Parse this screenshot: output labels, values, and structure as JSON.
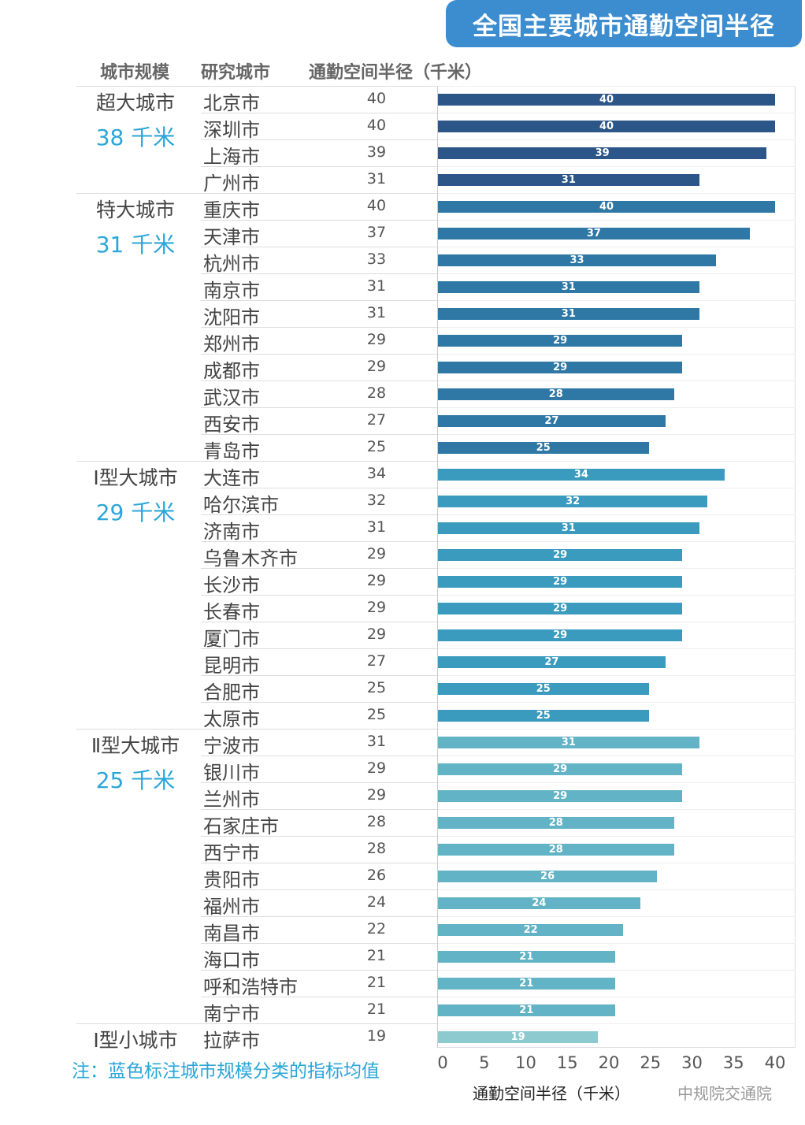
{
  "title": "全国主要城市通勤空间半径",
  "headers": {
    "scale": "城市规模",
    "city": "研究城市",
    "value": "通勤空间半径（千米）"
  },
  "note": "注：蓝色标注城市规模分类的指标均值",
  "watermark": "中规院交通院",
  "chart_data": {
    "type": "bar",
    "orientation": "horizontal",
    "xlabel": "通勤空间半径（千米）",
    "xlim": [
      0,
      40
    ],
    "xticks": [
      "0",
      "5",
      "10",
      "15",
      "20",
      "25",
      "30",
      "35",
      "40"
    ],
    "groups": [
      {
        "name": "超大城市",
        "avg": "38 千米",
        "color": "#2b5687",
        "cities": [
          "北京市",
          "深圳市",
          "上海市",
          "广州市"
        ],
        "values": [
          40,
          40,
          39,
          31
        ]
      },
      {
        "name": "特大城市",
        "avg": "31 千米",
        "color": "#2f78a5",
        "cities": [
          "重庆市",
          "天津市",
          "杭州市",
          "南京市",
          "沈阳市",
          "郑州市",
          "成都市",
          "武汉市",
          "西安市",
          "青岛市"
        ],
        "values": [
          40,
          37,
          33,
          31,
          31,
          29,
          29,
          28,
          27,
          25
        ]
      },
      {
        "name": "Ⅰ型大城市",
        "avg": "29 千米",
        "color": "#3a9bbf",
        "cities": [
          "大连市",
          "哈尔滨市",
          "济南市",
          "乌鲁木齐市",
          "长沙市",
          "长春市",
          "厦门市",
          "昆明市",
          "合肥市",
          "太原市"
        ],
        "values": [
          34,
          32,
          31,
          29,
          29,
          29,
          29,
          27,
          25,
          25
        ]
      },
      {
        "name": "Ⅱ型大城市",
        "avg": "25 千米",
        "color": "#62b3c5",
        "cities": [
          "宁波市",
          "银川市",
          "兰州市",
          "石家庄市",
          "西宁市",
          "贵阳市",
          "福州市",
          "南昌市",
          "海口市",
          "呼和浩特市",
          "南宁市"
        ],
        "values": [
          31,
          29,
          29,
          28,
          28,
          26,
          24,
          22,
          21,
          21,
          21
        ]
      },
      {
        "name": "Ⅰ型小城市",
        "avg": "",
        "color": "#8ccacf",
        "cities": [
          "拉萨市"
        ],
        "values": [
          19
        ]
      }
    ]
  }
}
